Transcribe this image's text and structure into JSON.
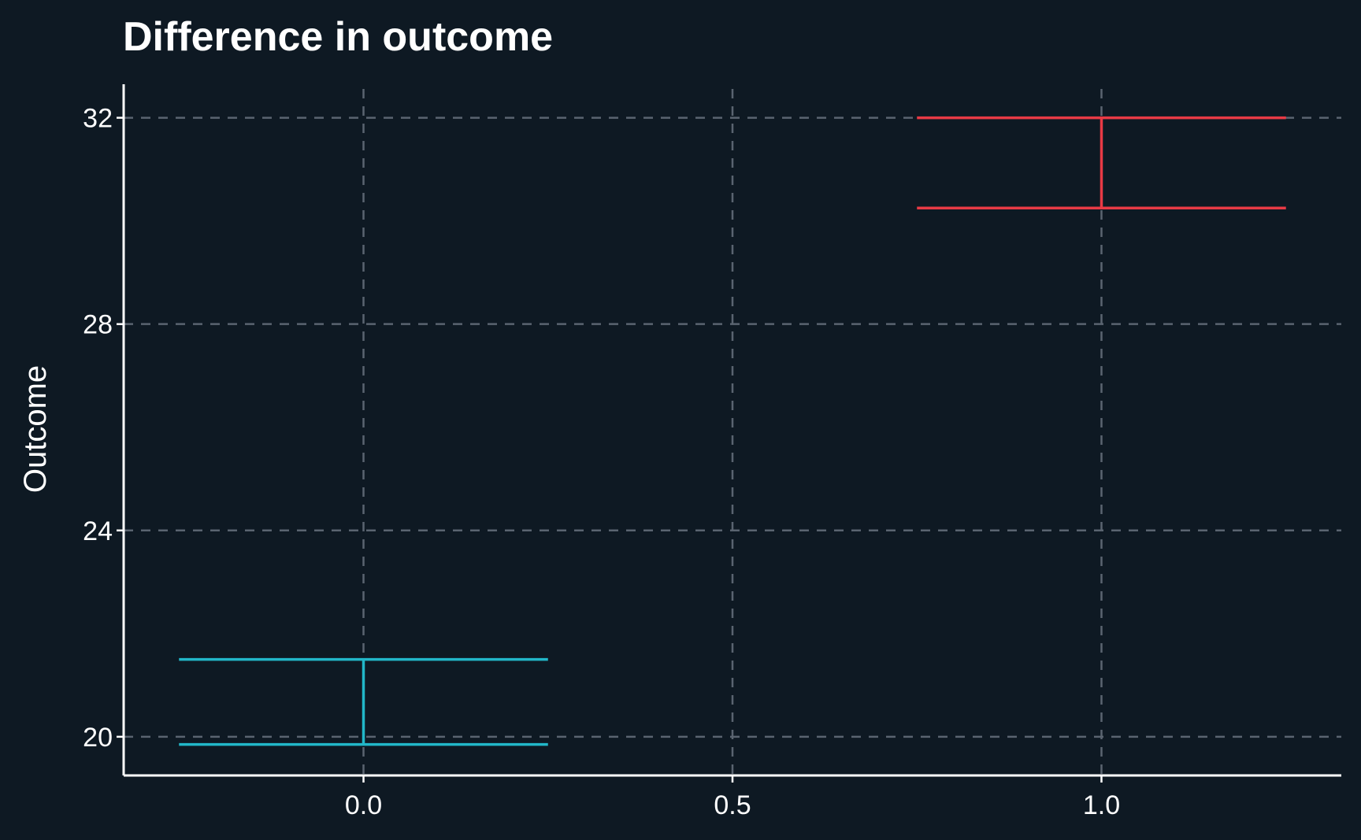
{
  "chart_data": {
    "type": "errorbar",
    "title": "Difference in outcome",
    "xlabel": "",
    "ylabel": "Outcome",
    "xlim": [
      -0.325,
      1.325
    ],
    "ylim": [
      19.25,
      32.65
    ],
    "x_ticks": [
      0.0,
      0.5,
      1.0
    ],
    "x_tick_labels": [
      "0.0",
      "0.5",
      "1.0"
    ],
    "y_ticks": [
      20,
      24,
      28,
      32
    ],
    "y_tick_labels": [
      "20",
      "24",
      "28",
      "32"
    ],
    "grid": true,
    "legend": "none",
    "errorbar_halfwidth": 0.25,
    "series": [
      {
        "x": 0.0,
        "ymin": 19.85,
        "ymax": 21.5,
        "color": "#22b7c8"
      },
      {
        "x": 1.0,
        "ymin": 30.25,
        "ymax": 32.0,
        "color": "#e83a45"
      }
    ]
  }
}
